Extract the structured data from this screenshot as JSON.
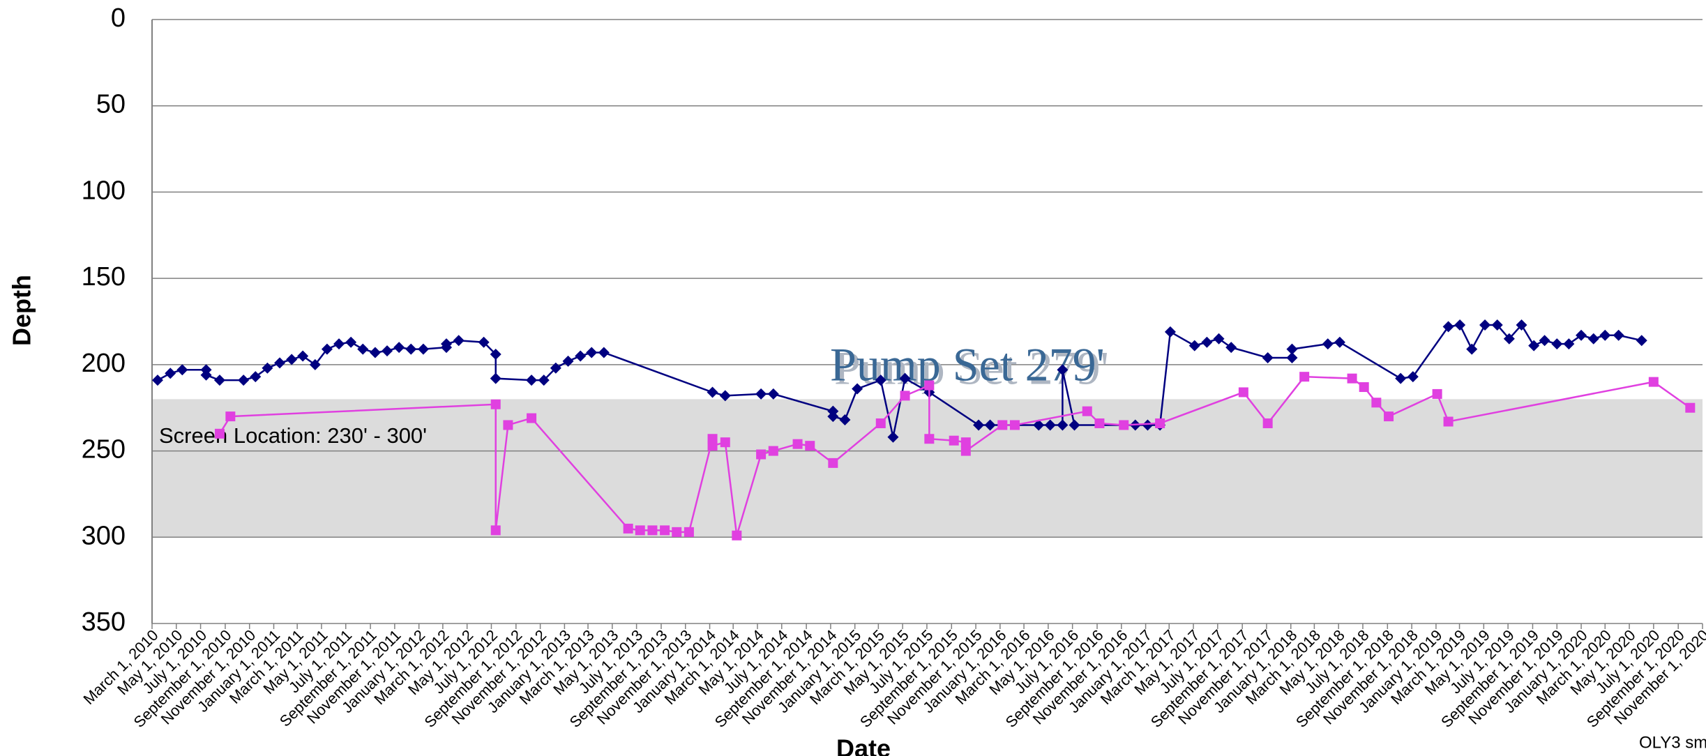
{
  "chart_data": {
    "type": "line",
    "y_label": "Depth",
    "x_label": "Date",
    "footnote": "OLY3 sm",
    "annotations": {
      "screen": "Screen Location: 230' - 300'",
      "pump": "Pump Set 279'"
    },
    "band": {
      "from": 220,
      "to": 300,
      "color": "#dcdcdc"
    },
    "ylim": [
      0,
      350
    ],
    "y_inverted": true,
    "yticks": [
      0,
      50,
      100,
      150,
      200,
      250,
      300,
      350
    ],
    "grid": true,
    "xlim": [
      "2010-03-01",
      "2020-11-01"
    ],
    "xticks": [
      {
        "value": "2010-03-01",
        "label": "March 1, 2010"
      },
      {
        "value": "2010-05-01",
        "label": "May 1, 2010"
      },
      {
        "value": "2010-07-01",
        "label": "July 1, 2010"
      },
      {
        "value": "2010-09-01",
        "label": "September 1, 2010"
      },
      {
        "value": "2010-11-01",
        "label": "November 1, 2010"
      },
      {
        "value": "2011-01-01",
        "label": "January 1, 2011"
      },
      {
        "value": "2011-03-01",
        "label": "March 1, 2011"
      },
      {
        "value": "2011-05-01",
        "label": "May 1, 2011"
      },
      {
        "value": "2011-07-01",
        "label": "July 1, 2011"
      },
      {
        "value": "2011-09-01",
        "label": "September 1, 2011"
      },
      {
        "value": "2011-11-01",
        "label": "November 1, 2011"
      },
      {
        "value": "2012-01-01",
        "label": "January 1, 2012"
      },
      {
        "value": "2012-03-01",
        "label": "March 1, 2012"
      },
      {
        "value": "2012-05-01",
        "label": "May 1, 2012"
      },
      {
        "value": "2012-07-01",
        "label": "July 1, 2012"
      },
      {
        "value": "2012-09-01",
        "label": "September 1, 2012"
      },
      {
        "value": "2012-11-01",
        "label": "November 1, 2012"
      },
      {
        "value": "2013-01-01",
        "label": "January 1, 2013"
      },
      {
        "value": "2013-03-01",
        "label": "March 1, 2013"
      },
      {
        "value": "2013-05-01",
        "label": "May 1, 2013"
      },
      {
        "value": "2013-07-01",
        "label": "July 1, 2013"
      },
      {
        "value": "2013-09-01",
        "label": "September 1, 2013"
      },
      {
        "value": "2013-11-01",
        "label": "November 1, 2013"
      },
      {
        "value": "2014-01-01",
        "label": "January 1, 2014"
      },
      {
        "value": "2014-03-01",
        "label": "March 1, 2014"
      },
      {
        "value": "2014-05-01",
        "label": "May 1, 2014"
      },
      {
        "value": "2014-07-01",
        "label": "July 1, 2014"
      },
      {
        "value": "2014-09-01",
        "label": "September 1, 2014"
      },
      {
        "value": "2014-11-01",
        "label": "November 1, 2014"
      },
      {
        "value": "2015-01-01",
        "label": "January 1, 2015"
      },
      {
        "value": "2015-03-01",
        "label": "March 1, 2015"
      },
      {
        "value": "2015-05-01",
        "label": "May 1, 2015"
      },
      {
        "value": "2015-07-01",
        "label": "July 1, 2015"
      },
      {
        "value": "2015-09-01",
        "label": "September 1, 2015"
      },
      {
        "value": "2015-11-01",
        "label": "November 1, 2015"
      },
      {
        "value": "2016-01-01",
        "label": "January 1, 2016"
      },
      {
        "value": "2016-03-01",
        "label": "March 1, 2016"
      },
      {
        "value": "2016-05-01",
        "label": "May 1, 2016"
      },
      {
        "value": "2016-07-01",
        "label": "July 1, 2016"
      },
      {
        "value": "2016-09-01",
        "label": "September 1, 2016"
      },
      {
        "value": "2016-11-01",
        "label": "November 1, 2016"
      },
      {
        "value": "2017-01-01",
        "label": "January 1, 2017"
      },
      {
        "value": "2017-03-01",
        "label": "March 1, 2017"
      },
      {
        "value": "2017-05-01",
        "label": "May 1, 2017"
      },
      {
        "value": "2017-07-01",
        "label": "July 1, 2017"
      },
      {
        "value": "2017-09-01",
        "label": "September 1, 2017"
      },
      {
        "value": "2017-11-01",
        "label": "November 1, 2017"
      },
      {
        "value": "2018-01-01",
        "label": "January 1, 2018"
      },
      {
        "value": "2018-03-01",
        "label": "March 1, 2018"
      },
      {
        "value": "2018-05-01",
        "label": "May 1, 2018"
      },
      {
        "value": "2018-07-01",
        "label": "July 1, 2018"
      },
      {
        "value": "2018-09-01",
        "label": "September 1, 2018"
      },
      {
        "value": "2018-11-01",
        "label": "November 1, 2018"
      },
      {
        "value": "2019-01-01",
        "label": "January 1, 2019"
      },
      {
        "value": "2019-03-01",
        "label": "March 1, 2019"
      },
      {
        "value": "2019-05-01",
        "label": "May 1, 2019"
      },
      {
        "value": "2019-07-01",
        "label": "July 1, 2019"
      },
      {
        "value": "2019-09-01",
        "label": "September 1, 2019"
      },
      {
        "value": "2019-11-01",
        "label": "November 1, 2019"
      },
      {
        "value": "2020-01-01",
        "label": "January 1, 2020"
      },
      {
        "value": "2020-03-01",
        "label": "March 1, 2020"
      },
      {
        "value": "2020-05-01",
        "label": "May 1, 2020"
      },
      {
        "value": "2020-07-01",
        "label": "July 1, 2020"
      },
      {
        "value": "2020-09-01",
        "label": "September 1, 2020"
      },
      {
        "value": "2020-11-01",
        "label": "November 1, 2020"
      }
    ],
    "series": [
      {
        "color": "#000080",
        "marker": "diamond",
        "x": [
          "2010-03-15",
          "2010-04-16",
          "2010-05-16",
          "2010-07-15",
          "2010-07-15",
          "2010-08-18",
          "2010-10-17",
          "2010-11-16",
          "2010-12-16",
          "2011-01-16",
          "2011-02-15",
          "2011-03-15",
          "2011-04-15",
          "2011-05-15",
          "2011-06-14",
          "2011-07-14",
          "2011-08-13",
          "2011-09-13",
          "2011-10-13",
          "2011-11-12",
          "2011-12-12",
          "2012-01-12",
          "2012-03-10",
          "2012-03-10",
          "2012-04-10",
          "2012-06-12",
          "2012-07-12",
          "2012-07-12",
          "2012-10-10",
          "2012-11-10",
          "2012-12-10",
          "2013-01-10",
          "2013-02-10",
          "2013-03-10",
          "2013-04-10",
          "2014-01-08",
          "2014-02-09",
          "2014-05-10",
          "2014-06-10",
          "2014-11-07",
          "2014-11-07",
          "2014-12-07",
          "2015-01-07",
          "2015-03-07",
          "2015-04-07",
          "2015-05-07",
          "2015-07-07",
          "2015-11-08",
          "2015-12-07",
          "2016-04-07",
          "2016-05-06",
          "2016-06-06",
          "2016-06-06",
          "2016-07-06",
          "2016-12-06",
          "2017-01-06",
          "2017-02-06",
          "2017-03-04",
          "2017-05-04",
          "2017-06-04",
          "2017-07-04",
          "2017-08-04",
          "2017-11-04",
          "2018-01-04",
          "2018-01-04",
          "2018-04-04",
          "2018-05-04",
          "2018-10-04",
          "2018-11-04",
          "2019-02-01",
          "2019-03-02",
          "2019-04-01",
          "2019-05-04",
          "2019-06-04",
          "2019-07-04",
          "2019-08-04",
          "2019-09-04",
          "2019-10-01",
          "2019-11-01",
          "2019-12-01",
          "2020-01-01",
          "2020-02-01",
          "2020-03-01",
          "2020-04-04",
          "2020-06-01"
        ],
        "values": [
          209,
          205,
          203,
          203,
          206,
          209,
          209,
          207,
          202,
          199,
          197,
          195,
          200,
          191,
          188,
          187,
          191,
          193,
          192,
          190,
          191,
          191,
          190,
          188,
          186,
          187,
          194,
          208,
          209,
          209,
          202,
          198,
          195,
          193,
          193,
          216,
          218,
          217,
          217,
          227,
          230,
          232,
          214,
          209,
          242,
          208,
          216,
          235,
          235,
          235,
          235,
          235,
          203,
          235,
          235,
          235,
          235,
          181,
          189,
          187,
          185,
          190,
          196,
          196,
          191,
          188,
          187,
          208,
          207,
          178,
          177,
          191,
          177,
          177,
          185,
          177,
          189,
          186,
          188,
          188,
          183,
          185,
          183,
          183,
          186
        ]
      },
      {
        "color": "#e040e0",
        "marker": "square",
        "x": [
          "2010-08-18",
          "2010-09-14",
          "2012-07-12",
          "2012-07-12",
          "2012-08-12",
          "2012-10-10",
          "2013-06-10",
          "2013-07-10",
          "2013-08-10",
          "2013-09-10",
          "2013-10-10",
          "2013-11-10",
          "2014-01-08",
          "2014-01-08",
          "2014-02-09",
          "2014-03-10",
          "2014-05-10",
          "2014-06-10",
          "2014-08-10",
          "2014-09-10",
          "2014-11-07",
          "2015-03-07",
          "2015-05-07",
          "2015-07-07",
          "2015-07-07",
          "2015-09-07",
          "2015-10-07",
          "2015-10-07",
          "2016-01-07",
          "2016-02-07",
          "2016-08-07",
          "2016-09-07",
          "2016-11-07",
          "2017-02-06",
          "2017-09-04",
          "2017-11-04",
          "2018-02-04",
          "2018-06-04",
          "2018-07-04",
          "2018-08-04",
          "2018-09-04",
          "2019-01-04",
          "2019-02-01",
          "2020-07-01",
          "2020-10-01"
        ],
        "values": [
          240,
          230,
          223,
          296,
          235,
          231,
          295,
          296,
          296,
          296,
          297,
          297,
          243,
          247,
          245,
          299,
          252,
          250,
          246,
          247,
          257,
          234,
          218,
          212,
          243,
          244,
          245,
          250,
          235,
          235,
          227,
          234,
          235,
          234,
          216,
          234,
          207,
          208,
          213,
          222,
          230,
          217,
          233,
          210,
          225
        ]
      }
    ]
  }
}
